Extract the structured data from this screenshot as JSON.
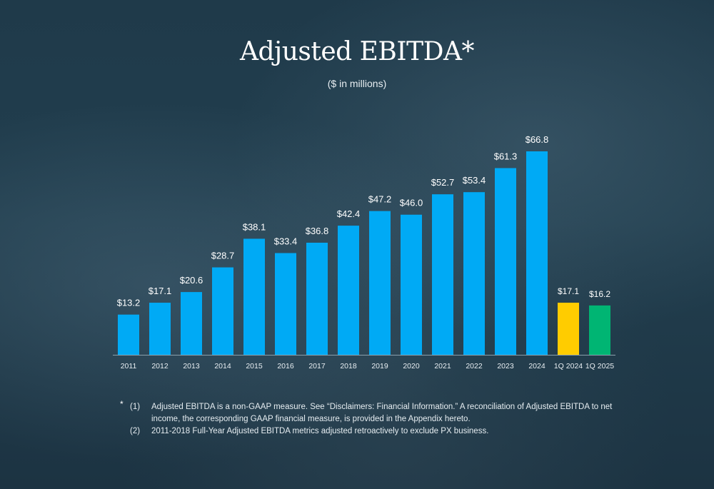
{
  "title": "Adjusted EBITDA*",
  "subtitle": "($ in millions)",
  "chart_data": {
    "type": "bar",
    "categories": [
      "2011",
      "2012",
      "2013",
      "2014",
      "2015",
      "2016",
      "2017",
      "2018",
      "2019",
      "2020",
      "2021",
      "2022",
      "2023",
      "2024",
      "1Q 2024",
      "1Q 2025"
    ],
    "values": [
      13.2,
      17.1,
      20.6,
      28.7,
      38.1,
      33.4,
      36.8,
      42.4,
      47.2,
      46.0,
      52.7,
      53.4,
      61.3,
      66.8,
      17.1,
      16.2
    ],
    "data_labels": [
      "$13.2",
      "$17.1",
      "$20.6",
      "$28.7",
      "$38.1",
      "$33.4",
      "$36.8",
      "$42.4",
      "$47.2",
      "$46.0",
      "$52.7",
      "$53.4",
      "$61.3",
      "$66.8",
      "$17.1",
      "$16.2"
    ],
    "colors": [
      "#00aaf5",
      "#00aaf5",
      "#00aaf5",
      "#00aaf5",
      "#00aaf5",
      "#00aaf5",
      "#00aaf5",
      "#00aaf5",
      "#00aaf5",
      "#00aaf5",
      "#00aaf5",
      "#00aaf5",
      "#00aaf5",
      "#00aaf5",
      "#ffcc00",
      "#00b573"
    ],
    "ylim": [
      0,
      70
    ],
    "grid": false,
    "title": "Adjusted EBITDA*",
    "subtitle": "($ in millions)",
    "xlabel": "",
    "ylabel": ""
  },
  "footnotes": {
    "star": "*",
    "items": [
      {
        "num": "(1)",
        "text": "Adjusted EBITDA is a non-GAAP measure. See “Disclaimers: Financial Information.” A reconciliation of Adjusted EBITDA to net income, the corresponding GAAP   financial measure, is provided in the Appendix hereto."
      },
      {
        "num": "(2)",
        "text": "2011-2018 Full-Year Adjusted EBITDA metrics adjusted retroactively to exclude PX business."
      }
    ]
  }
}
